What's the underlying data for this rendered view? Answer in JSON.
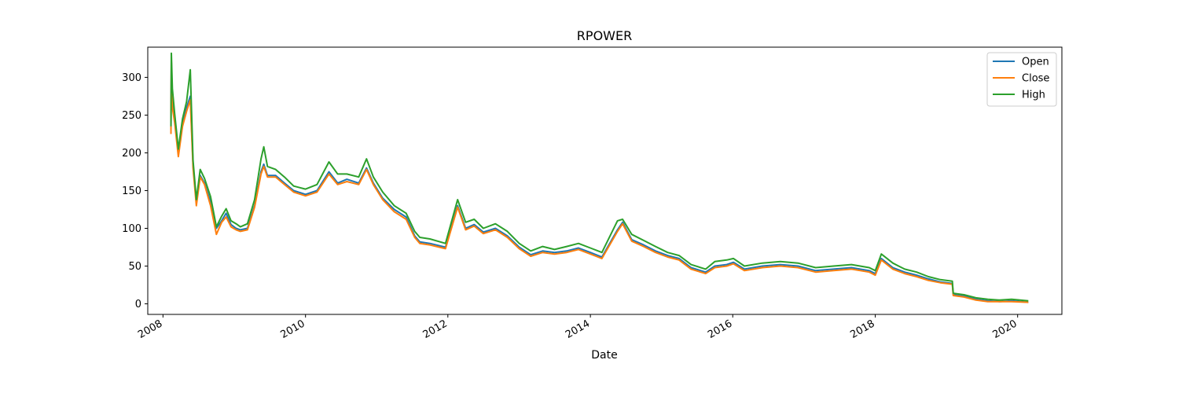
{
  "chart_data": {
    "type": "line",
    "title": "RPOWER",
    "xlabel": "Date",
    "ylabel": "",
    "xlim": [
      "2007-10-15",
      "2020-08-15"
    ],
    "ylim": [
      -14,
      340
    ],
    "x_ticks": [
      "2008",
      "2010",
      "2012",
      "2014",
      "2016",
      "2018",
      "2020"
    ],
    "y_ticks": [
      0,
      50,
      100,
      150,
      200,
      250,
      300
    ],
    "grid": false,
    "legend_position": "top-right",
    "legend": [
      "Open",
      "Close",
      "High"
    ],
    "colors": {
      "Open": "#1f77b4",
      "Close": "#ff7f0e",
      "High": "#2ca02c"
    },
    "x": [
      "2008-02-11",
      "2008-02-13",
      "2008-02-18",
      "2008-03-01",
      "2008-03-20",
      "2008-04-10",
      "2008-05-01",
      "2008-05-20",
      "2008-06-03",
      "2008-06-20",
      "2008-07-10",
      "2008-08-01",
      "2008-09-01",
      "2008-10-01",
      "2008-10-28",
      "2008-11-20",
      "2008-12-15",
      "2009-01-10",
      "2009-02-01",
      "2009-03-09",
      "2009-04-15",
      "2009-05-18",
      "2009-06-01",
      "2009-06-20",
      "2009-08-01",
      "2009-09-15",
      "2009-11-01",
      "2010-01-01",
      "2010-03-01",
      "2010-05-01",
      "2010-06-15",
      "2010-08-01",
      "2010-10-01",
      "2010-11-10",
      "2010-12-15",
      "2011-02-01",
      "2011-04-01",
      "2011-06-01",
      "2011-07-15",
      "2011-08-10",
      "2011-10-01",
      "2011-12-20",
      "2012-02-20",
      "2012-04-01",
      "2012-05-15",
      "2012-07-01",
      "2012-09-01",
      "2012-11-01",
      "2013-01-01",
      "2013-03-01",
      "2013-05-01",
      "2013-07-01",
      "2013-09-01",
      "2013-11-01",
      "2014-01-01",
      "2014-03-01",
      "2014-05-20",
      "2014-06-15",
      "2014-08-01",
      "2014-10-01",
      "2014-12-01",
      "2015-02-01",
      "2015-04-01",
      "2015-06-01",
      "2015-08-15",
      "2015-10-01",
      "2015-12-01",
      "2016-01-05",
      "2016-03-01",
      "2016-06-01",
      "2016-09-01",
      "2016-12-01",
      "2017-03-01",
      "2017-06-01",
      "2017-09-01",
      "2017-12-01",
      "2018-01-01",
      "2018-02-01",
      "2018-04-01",
      "2018-06-01",
      "2018-08-01",
      "2018-10-01",
      "2018-12-01",
      "2019-01-31",
      "2019-02-05",
      "2019-04-01",
      "2019-06-01",
      "2019-08-01",
      "2019-10-01",
      "2019-12-01",
      "2020-02-25"
    ],
    "series": [
      {
        "name": "Open",
        "values": [
          230,
          320,
          265,
          245,
          200,
          240,
          260,
          275,
          185,
          135,
          170,
          160,
          135,
          100,
          110,
          120,
          105,
          100,
          98,
          100,
          130,
          175,
          185,
          170,
          170,
          160,
          150,
          145,
          150,
          175,
          160,
          165,
          160,
          180,
          160,
          140,
          125,
          115,
          90,
          82,
          80,
          75,
          130,
          100,
          105,
          95,
          100,
          90,
          75,
          65,
          70,
          68,
          70,
          74,
          68,
          62,
          98,
          108,
          85,
          78,
          70,
          64,
          60,
          48,
          42,
          50,
          52,
          55,
          46,
          50,
          52,
          50,
          44,
          46,
          48,
          44,
          40,
          60,
          48,
          42,
          38,
          33,
          29,
          27,
          12,
          10,
          6,
          4,
          3,
          4,
          2
        ]
      },
      {
        "name": "Close",
        "values": [
          225,
          322,
          260,
          240,
          195,
          235,
          255,
          270,
          180,
          130,
          168,
          158,
          130,
          92,
          108,
          115,
          102,
          98,
          96,
          98,
          128,
          172,
          182,
          168,
          168,
          158,
          148,
          143,
          148,
          172,
          158,
          162,
          158,
          178,
          158,
          138,
          122,
          112,
          88,
          80,
          78,
          73,
          128,
          98,
          103,
          93,
          98,
          88,
          73,
          63,
          68,
          66,
          68,
          72,
          66,
          60,
          96,
          106,
          83,
          76,
          68,
          62,
          58,
          46,
          40,
          48,
          50,
          53,
          44,
          48,
          50,
          48,
          42,
          44,
          46,
          42,
          38,
          58,
          46,
          40,
          36,
          31,
          28,
          26,
          11,
          9,
          5,
          3,
          3,
          3,
          2
        ]
      },
      {
        "name": "High",
        "values": [
          235,
          332,
          285,
          252,
          205,
          245,
          268,
          310,
          190,
          138,
          178,
          166,
          142,
          102,
          116,
          126,
          110,
          106,
          102,
          106,
          138,
          192,
          208,
          182,
          178,
          168,
          156,
          152,
          158,
          188,
          172,
          172,
          168,
          192,
          168,
          148,
          130,
          120,
          96,
          88,
          86,
          80,
          138,
          108,
          112,
          100,
          106,
          96,
          80,
          70,
          76,
          72,
          76,
          80,
          74,
          68,
          110,
          112,
          92,
          84,
          76,
          68,
          64,
          52,
          46,
          56,
          58,
          60,
          50,
          54,
          56,
          54,
          48,
          50,
          52,
          48,
          44,
          66,
          54,
          46,
          42,
          36,
          32,
          30,
          14,
          12,
          8,
          6,
          5,
          6,
          4
        ]
      }
    ]
  }
}
